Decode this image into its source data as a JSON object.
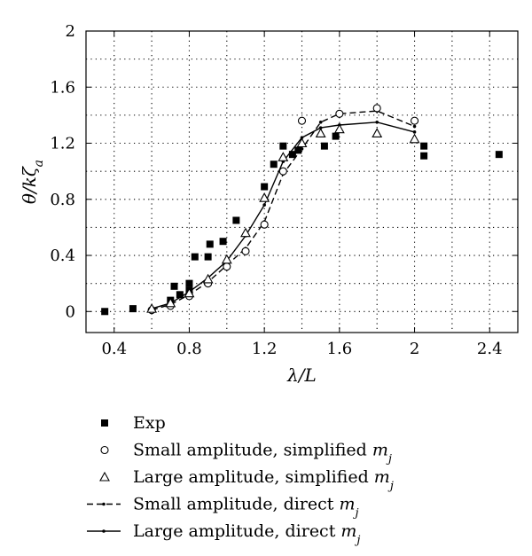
{
  "chart_data": {
    "type": "scatter",
    "xlabel": "λ/L",
    "ylabel": "θ/kζa",
    "xlim": [
      0.25,
      2.55
    ],
    "ylim": [
      -0.15,
      2.0
    ],
    "x_ticks": [
      0.4,
      0.8,
      1.2,
      1.6,
      2,
      2.4
    ],
    "x_tick_labels": [
      "0.4",
      "0.8",
      "1.2",
      "1.6",
      "2",
      "2.4"
    ],
    "y_ticks": [
      0,
      0.4,
      0.8,
      1.2,
      1.6,
      2
    ],
    "y_tick_labels": [
      "0",
      "0.4",
      "0.8",
      "1.2",
      "1.6",
      "2"
    ],
    "grid": true,
    "legend_position": "below",
    "series": [
      {
        "name": "Exp",
        "style": "filled-square",
        "points": [
          [
            0.35,
            0.0
          ],
          [
            0.5,
            0.02
          ],
          [
            0.7,
            0.08
          ],
          [
            0.72,
            0.18
          ],
          [
            0.75,
            0.12
          ],
          [
            0.8,
            0.15
          ],
          [
            0.8,
            0.2
          ],
          [
            0.83,
            0.39
          ],
          [
            0.9,
            0.39
          ],
          [
            0.91,
            0.48
          ],
          [
            0.98,
            0.5
          ],
          [
            1.05,
            0.65
          ],
          [
            1.2,
            0.89
          ],
          [
            1.25,
            1.05
          ],
          [
            1.3,
            1.18
          ],
          [
            1.35,
            1.12
          ],
          [
            1.38,
            1.15
          ],
          [
            1.52,
            1.18
          ],
          [
            1.58,
            1.25
          ],
          [
            2.05,
            1.11
          ],
          [
            2.05,
            1.18
          ],
          [
            2.45,
            1.12
          ]
        ]
      },
      {
        "name": "Small amplitude, simplified mj",
        "style": "open-circle",
        "points": [
          [
            0.6,
            0.01
          ],
          [
            0.7,
            0.04
          ],
          [
            0.8,
            0.11
          ],
          [
            0.9,
            0.2
          ],
          [
            1.0,
            0.32
          ],
          [
            1.1,
            0.43
          ],
          [
            1.2,
            0.62
          ],
          [
            1.3,
            1.0
          ],
          [
            1.4,
            1.36
          ],
          [
            1.6,
            1.41
          ],
          [
            1.8,
            1.45
          ],
          [
            2.0,
            1.36
          ]
        ]
      },
      {
        "name": "Large amplitude, simplified mj",
        "style": "open-triangle",
        "points": [
          [
            0.6,
            0.02
          ],
          [
            0.7,
            0.06
          ],
          [
            0.8,
            0.13
          ],
          [
            0.9,
            0.23
          ],
          [
            1.0,
            0.37
          ],
          [
            1.1,
            0.56
          ],
          [
            1.2,
            0.81
          ],
          [
            1.3,
            1.1
          ],
          [
            1.4,
            1.2
          ],
          [
            1.5,
            1.27
          ],
          [
            1.6,
            1.3
          ],
          [
            1.8,
            1.27
          ],
          [
            2.0,
            1.23
          ]
        ]
      },
      {
        "name": "Small amplitude, direct mj",
        "style": "dashed-line",
        "points": [
          [
            0.6,
            0.01
          ],
          [
            0.7,
            0.05
          ],
          [
            0.8,
            0.12
          ],
          [
            0.9,
            0.21
          ],
          [
            1.0,
            0.33
          ],
          [
            1.1,
            0.45
          ],
          [
            1.2,
            0.64
          ],
          [
            1.3,
            0.98
          ],
          [
            1.4,
            1.16
          ],
          [
            1.5,
            1.35
          ],
          [
            1.6,
            1.41
          ],
          [
            1.8,
            1.43
          ],
          [
            2.0,
            1.32
          ]
        ]
      },
      {
        "name": "Large amplitude, direct mj",
        "style": "solid-line",
        "points": [
          [
            0.6,
            0.02
          ],
          [
            0.7,
            0.06
          ],
          [
            0.8,
            0.14
          ],
          [
            0.9,
            0.24
          ],
          [
            1.0,
            0.36
          ],
          [
            1.1,
            0.54
          ],
          [
            1.2,
            0.76
          ],
          [
            1.3,
            1.07
          ],
          [
            1.4,
            1.24
          ],
          [
            1.5,
            1.31
          ],
          [
            1.6,
            1.33
          ],
          [
            1.8,
            1.35
          ],
          [
            2.0,
            1.28
          ]
        ]
      }
    ],
    "legend": [
      {
        "marker": "filled-square",
        "text": "Exp",
        "math": ""
      },
      {
        "marker": "open-circle",
        "text": "Small amplitude, simplified ",
        "math": "m",
        "sub": "j"
      },
      {
        "marker": "open-triangle",
        "text": "Large amplitude, simplified ",
        "math": "m",
        "sub": "j"
      },
      {
        "marker": "dashed-line",
        "text": "Small amplitude, direct ",
        "math": "m",
        "sub": "j"
      },
      {
        "marker": "solid-line",
        "text": "Large amplitude, direct ",
        "math": "m",
        "sub": "j"
      }
    ]
  }
}
